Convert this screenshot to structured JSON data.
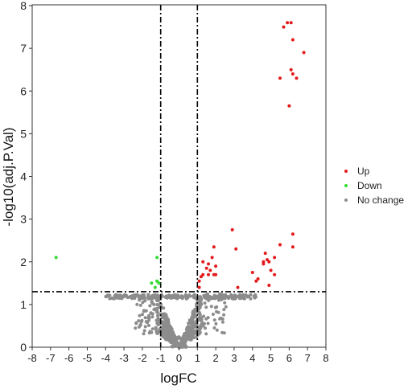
{
  "chart_data": {
    "type": "scatter",
    "title": "",
    "xlabel": "logFC",
    "ylabel": "-log10(adj.P.Val)",
    "xlim": [
      -8,
      8
    ],
    "ylim": [
      0,
      8
    ],
    "xticks": [
      -8,
      -7,
      -6,
      -5,
      -4,
      -3,
      -2,
      -1,
      0,
      1,
      2,
      3,
      4,
      5,
      6,
      7,
      8
    ],
    "yticks": [
      0,
      1,
      2,
      3,
      4,
      5,
      6,
      7,
      8
    ],
    "grid": false,
    "legend_position": "right",
    "thresholds": {
      "x": [
        -1,
        1
      ],
      "y": 1.3
    },
    "series": [
      {
        "name": "Up",
        "color": "#e31a1c",
        "points": [
          [
            5.9,
            7.6
          ],
          [
            6.1,
            7.6
          ],
          [
            5.7,
            7.5
          ],
          [
            6.2,
            7.2
          ],
          [
            6.8,
            6.9
          ],
          [
            6.1,
            6.5
          ],
          [
            5.5,
            6.3
          ],
          [
            6.4,
            6.3
          ],
          [
            6.2,
            6.4
          ],
          [
            6.0,
            5.65
          ],
          [
            2.9,
            2.75
          ],
          [
            6.2,
            2.65
          ],
          [
            5.5,
            2.4
          ],
          [
            6.2,
            2.35
          ],
          [
            1.9,
            2.35
          ],
          [
            3.1,
            2.3
          ],
          [
            1.8,
            2.1
          ],
          [
            4.7,
            2.2
          ],
          [
            4.8,
            2.05
          ],
          [
            4.9,
            2.0
          ],
          [
            5.2,
            2.1
          ],
          [
            1.3,
            2.0
          ],
          [
            1.6,
            1.95
          ],
          [
            4.6,
            1.95
          ],
          [
            2.0,
            1.9
          ],
          [
            4.6,
            2.0
          ],
          [
            1.5,
            1.85
          ],
          [
            1.7,
            1.8
          ],
          [
            5.0,
            1.8
          ],
          [
            4.0,
            1.75
          ],
          [
            1.3,
            1.7
          ],
          [
            1.6,
            1.7
          ],
          [
            1.9,
            1.7
          ],
          [
            5.2,
            1.7
          ],
          [
            1.2,
            1.65
          ],
          [
            4.3,
            1.6
          ],
          [
            4.2,
            1.55
          ],
          [
            1.1,
            1.55
          ],
          [
            2.0,
            1.7
          ],
          [
            4.9,
            1.45
          ],
          [
            3.2,
            1.4
          ],
          [
            1.1,
            1.4
          ]
        ]
      },
      {
        "name": "Down",
        "color": "#33dd33",
        "points": [
          [
            -6.7,
            2.1
          ],
          [
            -1.2,
            2.1
          ],
          [
            -1.2,
            1.55
          ],
          [
            -1.5,
            1.5
          ],
          [
            -1.1,
            1.5
          ],
          [
            -1.3,
            1.4
          ]
        ]
      },
      {
        "name": "No change",
        "color": "#8c8c8c",
        "generated": "dense cloud of non-significant genes (|logFC|<1 or adj.P.Val>0.05), -log10 values 0 to 1.3"
      }
    ]
  }
}
